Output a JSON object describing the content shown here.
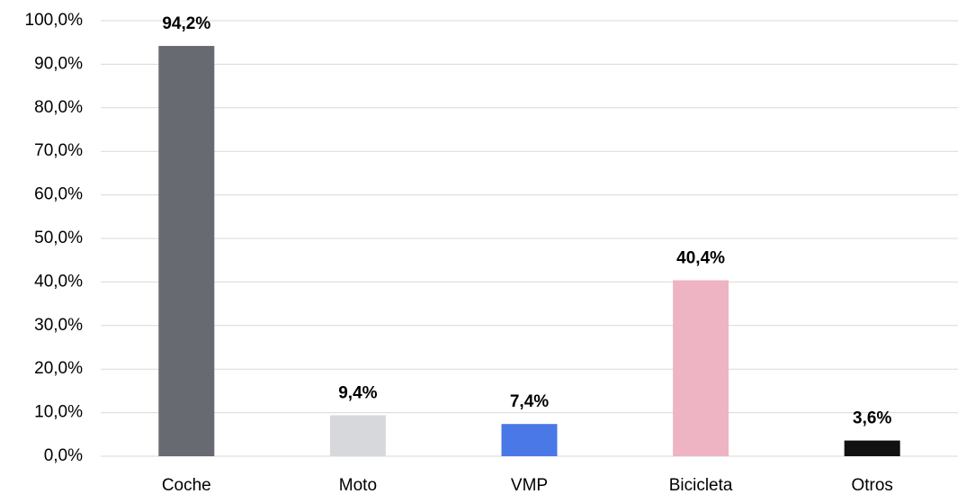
{
  "chart_data": {
    "type": "bar",
    "categories": [
      "Coche",
      "Moto",
      "VMP",
      "Bicicleta",
      "Otros"
    ],
    "values": [
      94.2,
      9.4,
      7.4,
      40.4,
      3.6
    ],
    "value_labels": [
      "94,2%",
      "9,4%",
      "7,4%",
      "40,4%",
      "3,6%"
    ],
    "colors": [
      "#686a72",
      "#d7d8db",
      "#4a78e6",
      "#eeb4c4",
      "#111111"
    ],
    "ylim": [
      0,
      100
    ],
    "yticks": [
      {
        "value": 0,
        "label": "0,0%"
      },
      {
        "value": 10,
        "label": "10,0%"
      },
      {
        "value": 20,
        "label": "20,0%"
      },
      {
        "value": 30,
        "label": "30,0%"
      },
      {
        "value": 40,
        "label": "40,0%"
      },
      {
        "value": 50,
        "label": "50,0%"
      },
      {
        "value": 60,
        "label": "60,0%"
      },
      {
        "value": 70,
        "label": "70,0%"
      },
      {
        "value": 80,
        "label": "80,0%"
      },
      {
        "value": 90,
        "label": "90,0%"
      },
      {
        "value": 100,
        "label": "100,0%"
      }
    ],
    "grid": true
  }
}
